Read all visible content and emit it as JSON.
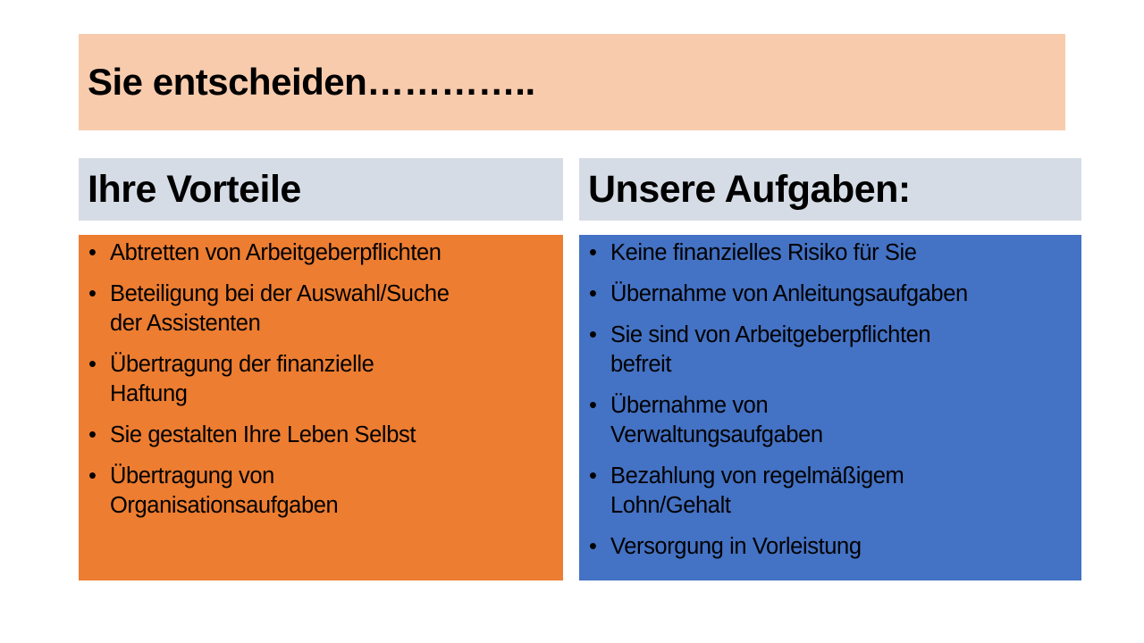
{
  "title": "Sie entscheiden…………..",
  "colors": {
    "title_bg": "#F8CBAD",
    "head_bg": "#D6DCE5",
    "left_bg": "#ED7D31",
    "right_bg": "#4472C4"
  },
  "left": {
    "heading": "Ihre Vorteile",
    "items": [
      "Abtretten von Arbeitgeberpflichten",
      "Beteiligung bei der Auswahl/Suche\nder Assistenten",
      "Übertragung der finanzielle\nHaftung",
      "Sie gestalten Ihre Leben Selbst",
      "Übertragung von\nOrganisationsaufgaben"
    ]
  },
  "right": {
    "heading": "Unsere Aufgaben:",
    "items": [
      "Keine finanzielles Risiko für Sie",
      "Übernahme von Anleitungsaufgaben",
      "Sie sind von Arbeitgeberpflichten\nbefreit",
      "Übernahme von\nVerwaltungsaufgaben",
      "Bezahlung von regelmäßigem\nLohn/Gehalt",
      "Versorgung  in Vorleistung"
    ]
  }
}
